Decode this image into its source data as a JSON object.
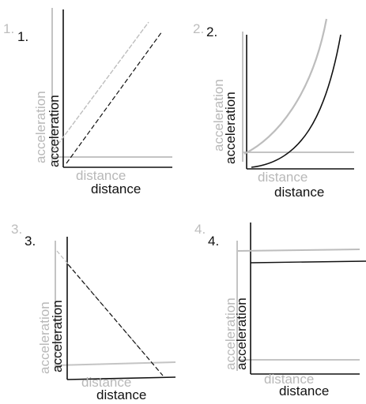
{
  "diagram": {
    "panels": [
      {
        "number": "1.",
        "number_ghost": "1.",
        "y_label": "acceleration",
        "y_label_ghost": "acceleration",
        "x_label": "distance",
        "x_label_ghost": "distance"
      },
      {
        "number": "2.",
        "number_ghost": "2.",
        "y_label": "acceleration",
        "y_label_ghost": "acceleration",
        "x_label": "distance",
        "x_label_ghost": "distance"
      },
      {
        "number": "3.",
        "number_ghost": "3.",
        "y_label": "acceleration",
        "y_label_ghost": "acceleration",
        "x_label": "distance",
        "x_label_ghost": "distance"
      },
      {
        "number": "4.",
        "number_ghost": "4.",
        "y_label": "acceleration",
        "y_label_ghost": "acceleration",
        "x_label": "distance",
        "x_label_ghost": "distance"
      }
    ],
    "colors": {
      "dark": "#111111",
      "ghost": "#b8b8b8"
    }
  }
}
